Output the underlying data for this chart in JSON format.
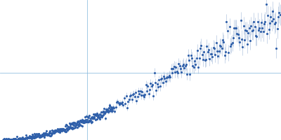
{
  "background_color": "#ffffff",
  "point_color": "#3060aa",
  "error_color": "#a0b8d8",
  "grid_color": "#88bbdd",
  "point_size": 1.5,
  "fig_width": 4.0,
  "fig_height": 2.0,
  "dpi": 100,
  "xlim": [
    0.0,
    1.0
  ],
  "ylim": [
    0.0,
    1.0
  ],
  "hline_y": 0.48,
  "vline_x": 0.31,
  "seed": 17
}
